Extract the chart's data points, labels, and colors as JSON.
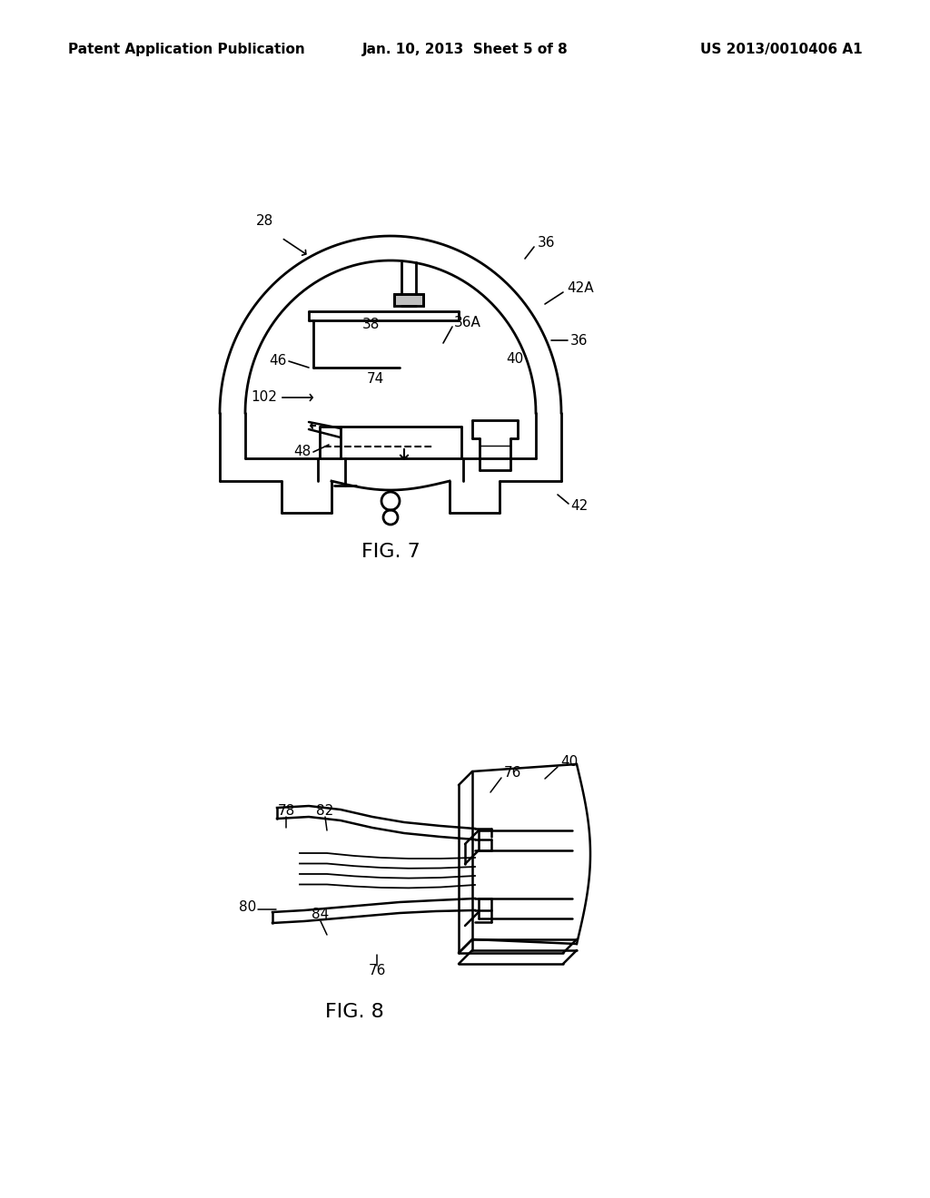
{
  "background_color": "#ffffff",
  "header_left": "Patent Application Publication",
  "header_center": "Jan. 10, 2013  Sheet 5 of 8",
  "header_right": "US 2013/0010406 A1",
  "fig7_label": "FIG. 7",
  "fig8_label": "FIG. 8"
}
